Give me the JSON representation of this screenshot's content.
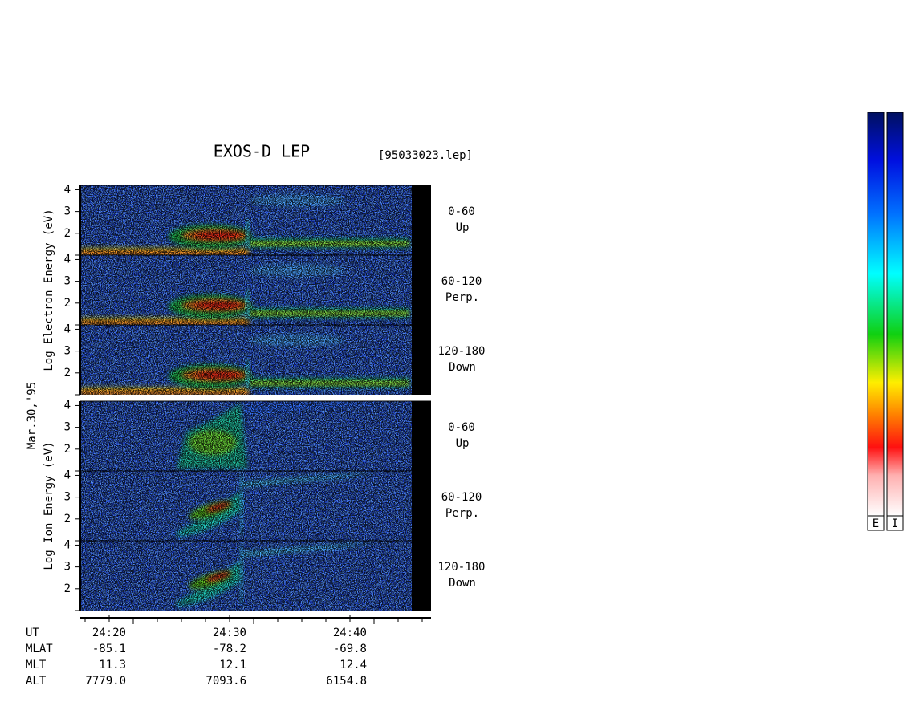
{
  "chart_data": {
    "type": "spectrogram",
    "title": "EXOS-D LEP",
    "file_label": "[95033023.lep]",
    "date_label": "Mar.30,'95",
    "ylim": [
      1,
      4.2
    ],
    "yticks": [
      2,
      3,
      4
    ],
    "groups": [
      {
        "ylabel": "Log Electron Energy (eV)",
        "species": "electron",
        "panels": [
          {
            "pitch_angle": "0-60",
            "direction": "Up"
          },
          {
            "pitch_angle": "60-120",
            "direction": "Perp."
          },
          {
            "pitch_angle": "120-180",
            "direction": "Down"
          }
        ]
      },
      {
        "ylabel": "Log Ion Energy (eV)",
        "species": "ion",
        "panels": [
          {
            "pitch_angle": "0-60",
            "direction": "Up"
          },
          {
            "pitch_angle": "60-120",
            "direction": "Perp."
          },
          {
            "pitch_angle": "120-180",
            "direction": "Down"
          }
        ]
      }
    ],
    "ephemeris": [
      {
        "name": "UT",
        "values": [
          "24:20",
          "24:30",
          "24:40"
        ]
      },
      {
        "name": "MLAT",
        "values": [
          "-85.1",
          "-78.2",
          "-69.8"
        ]
      },
      {
        "name": "MLT",
        "values": [
          "11.3",
          "12.1",
          "12.4"
        ]
      },
      {
        "name": "ALT",
        "values": [
          "7779.0",
          "7093.6",
          "6154.8"
        ]
      }
    ],
    "colorbars": [
      "E",
      "I"
    ]
  }
}
